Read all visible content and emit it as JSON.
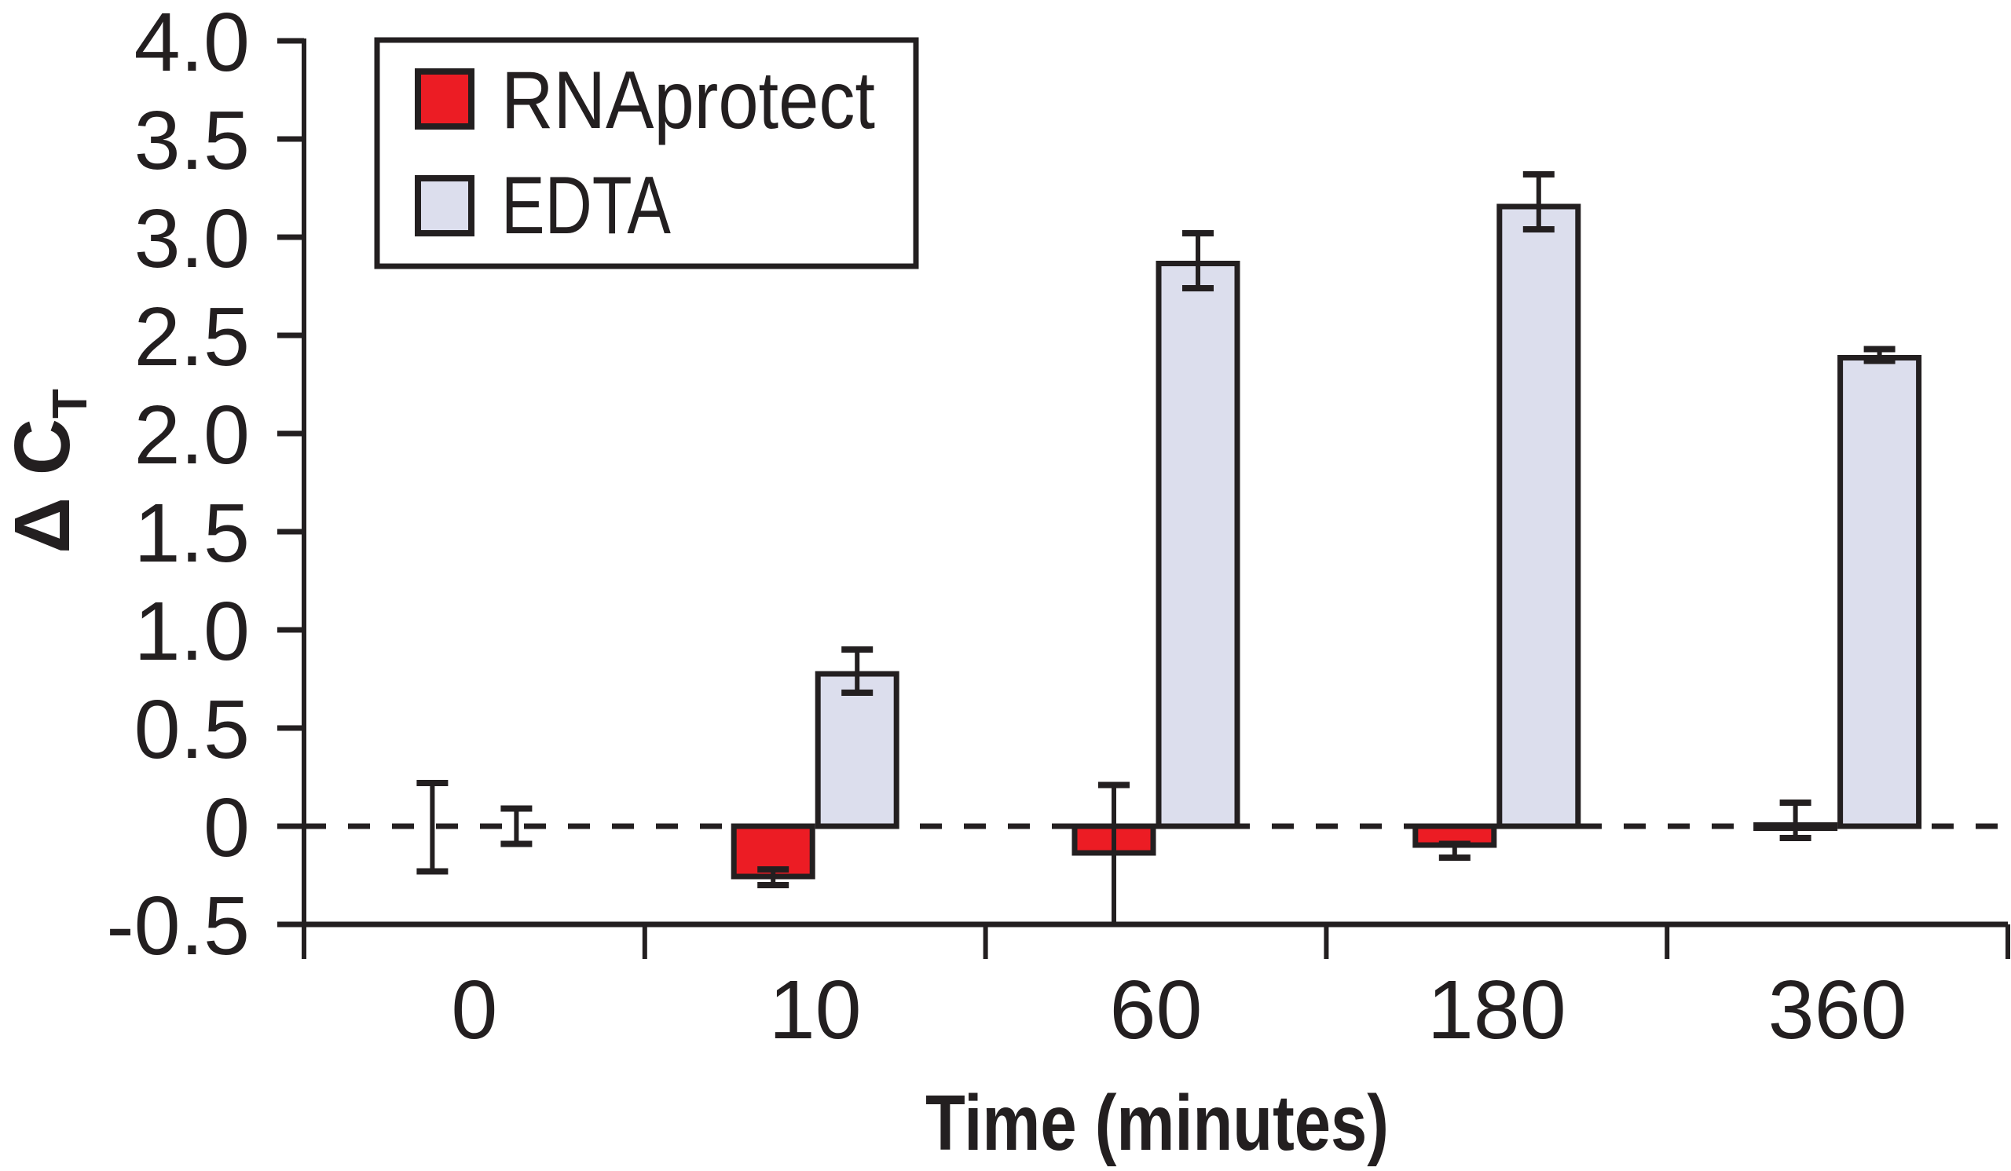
{
  "chart_data": {
    "type": "bar",
    "title": "",
    "xlabel": "Time (minutes)",
    "ylabel": "Δ C",
    "ylabel_subscript": "T",
    "categories": [
      "0",
      "10",
      "60",
      "180",
      "360"
    ],
    "ylim": [
      -0.5,
      4.0
    ],
    "yticks": [
      "-0.5",
      "0",
      "0.5",
      "1.0",
      "1.5",
      "2.0",
      "2.5",
      "3.0",
      "3.5",
      "4.0"
    ],
    "ytick_values": [
      -0.5,
      0,
      0.5,
      1.0,
      1.5,
      2.0,
      2.5,
      3.0,
      3.5,
      4.0
    ],
    "reference_line": 0,
    "grid": false,
    "legend_position": "top-left",
    "series": [
      {
        "name": "RNAprotect",
        "color": "#ec1c24",
        "values": [
          0.0,
          -0.27,
          -0.15,
          -0.11,
          0.02
        ],
        "error_low": [
          -0.23,
          -0.3,
          -0.5,
          -0.16,
          -0.06
        ],
        "error_high": [
          0.22,
          -0.22,
          0.21,
          -0.09,
          0.12
        ]
      },
      {
        "name": "EDTA",
        "color": "#dcdeed",
        "values": [
          0.0,
          0.79,
          2.88,
          3.17,
          2.4
        ],
        "error_low": [
          -0.09,
          0.68,
          2.74,
          3.04,
          2.37
        ],
        "error_high": [
          0.09,
          0.9,
          3.02,
          3.32,
          2.43
        ]
      }
    ]
  },
  "colors": {
    "ink": "#231f20",
    "background": "#ffffff"
  }
}
